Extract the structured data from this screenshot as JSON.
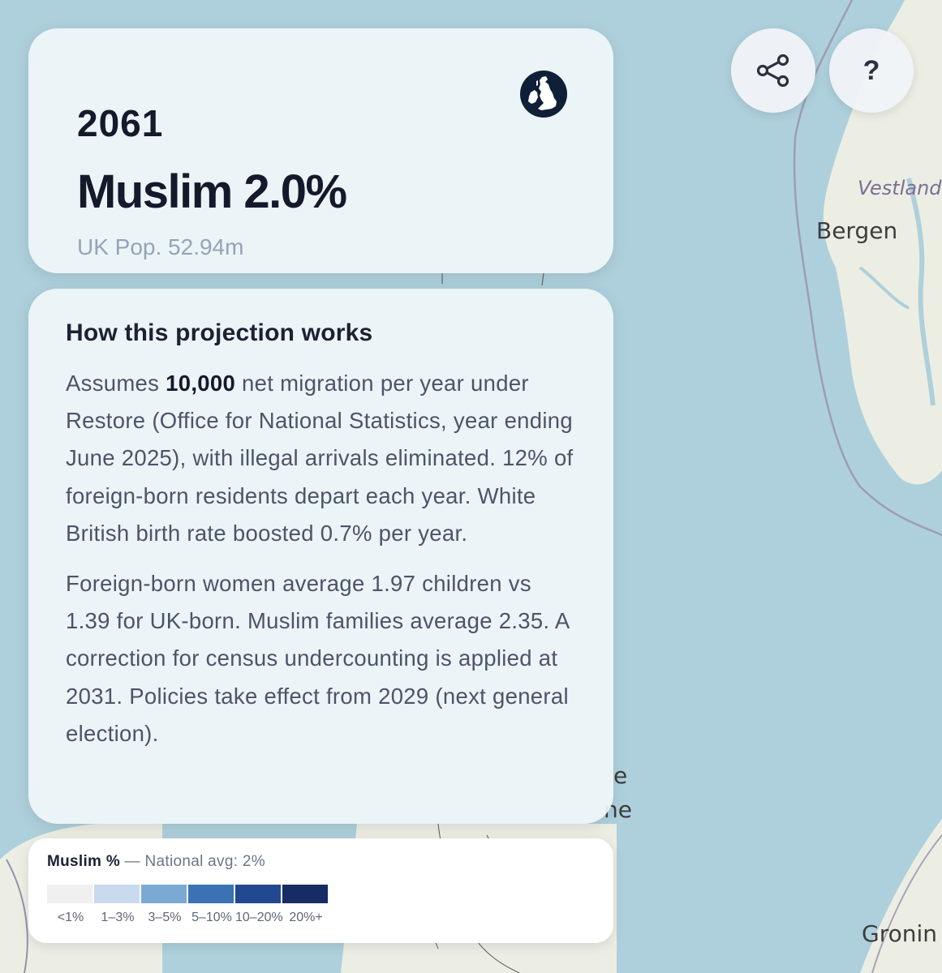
{
  "map": {
    "labels": {
      "vestland": "Vestland",
      "bergen": "Bergen",
      "groningen": "Gronin",
      "fragment_e": "e",
      "fragment_ne": "ne"
    }
  },
  "header": {
    "year": "2061",
    "headline": "Muslim 2.0%",
    "population": "UK Pop. 52.94m",
    "uk_icon": "uk-map-icon"
  },
  "controls": {
    "share_icon": "share-icon",
    "help_label": "?"
  },
  "info": {
    "title": "How this projection works",
    "p1_prefix": "Assumes ",
    "p1_migration": "10,000",
    "p1_suffix": " net migration per year under Restore (Office for National Statistics, year ending June 2025), with illegal arrivals eliminated. 12% of foreign-born residents depart each year. White British birth rate boosted 0.7% per year.",
    "p2": "Foreign-born women average 1.97 children vs 1.39 for UK-born. Muslim families average 2.35. A correction for census undercounting is applied at 2031. Policies take effect from 2029 (next general election)."
  },
  "legend": {
    "metric": "Muslim %",
    "separator": " — National avg: 2%",
    "buckets": [
      {
        "label": "<1%",
        "color": "#f0f0f0"
      },
      {
        "label": "1–3%",
        "color": "#c9d9ee"
      },
      {
        "label": "3–5%",
        "color": "#7aaad3"
      },
      {
        "label": "5–10%",
        "color": "#3b72b4"
      },
      {
        "label": "10–20%",
        "color": "#22488f"
      },
      {
        "label": "20%+",
        "color": "#172c62"
      }
    ]
  }
}
